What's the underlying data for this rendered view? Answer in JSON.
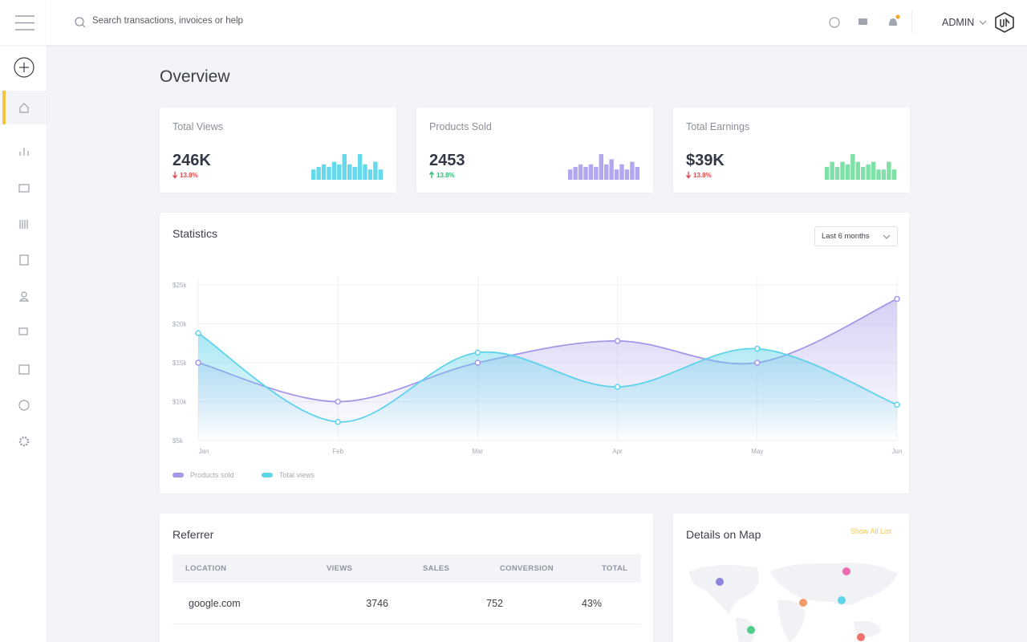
{
  "search_placeholder": "Search transactions, invoices or help",
  "user": "ADMIN",
  "page_title": "Overview",
  "cards": [
    {
      "label": "Total Views",
      "value": "246K",
      "change": "13.8%",
      "direction": "down",
      "color": "#66d9ec",
      "bars": [
        4,
        5,
        6,
        5,
        7,
        6,
        10,
        6,
        5,
        10,
        6,
        4,
        7,
        4
      ]
    },
    {
      "label": "Products Sold",
      "value": "2453",
      "change": "13.8%",
      "direction": "up",
      "color": "#b3a8f0",
      "bars": [
        4,
        5,
        6,
        5,
        6,
        5,
        10,
        6,
        8,
        4,
        6,
        4,
        7,
        5
      ]
    },
    {
      "label": "Total Earnings",
      "value": "$39K",
      "change": "13.8%",
      "direction": "down",
      "color": "#7fe0a8",
      "bars": [
        5,
        7,
        5,
        7,
        6,
        10,
        7,
        5,
        6,
        7,
        4,
        4,
        7,
        4
      ]
    }
  ],
  "statistics": {
    "title": "Statistics",
    "period": "Last 6 months",
    "chart_data": {
      "type": "area",
      "categories": [
        "Jan",
        "Feb",
        "Mar",
        "Apr",
        "May",
        "Jun"
      ],
      "series": [
        {
          "name": "Products sold",
          "color": "#a596e8",
          "values": [
            15000,
            10000,
            15000,
            17800,
            15000,
            23200
          ]
        },
        {
          "name": "Total views",
          "color": "#5fd3ea",
          "values": [
            18800,
            7400,
            16300,
            11900,
            16800,
            9600
          ]
        }
      ],
      "ylim": [
        5000,
        25000
      ],
      "yticks": [
        {
          "value": 5000,
          "label": "$5k"
        },
        {
          "value": 10000,
          "label": "$10k"
        },
        {
          "value": 15000,
          "label": "$15k"
        },
        {
          "value": 20000,
          "label": "$20k"
        },
        {
          "value": 25000,
          "label": "$25k"
        }
      ],
      "grid": true
    }
  },
  "referrer": {
    "title": "Referrer",
    "columns": [
      "LOCATION",
      "VIEWS",
      "SALES",
      "CONVERSION",
      "TOTAL"
    ],
    "rows": [
      [
        "google.com",
        "3746",
        "752",
        "43%",
        ""
      ]
    ]
  },
  "map": {
    "title": "Details on Map",
    "link": "Show All List"
  }
}
